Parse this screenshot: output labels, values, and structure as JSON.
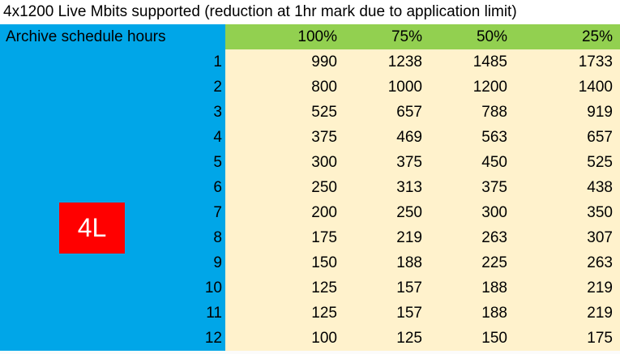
{
  "title": "4x1200 Live Mbits supported (reduction at 1hr mark due to application limit)",
  "header": {
    "row_label": "Archive schedule hours",
    "columns": [
      "100%",
      "75%",
      "50%",
      "25%"
    ]
  },
  "badge": "4L",
  "colors": {
    "sidebar": "#00a6e8",
    "header_band": "#92d050",
    "data_band": "#fff2cc",
    "badge": "#ff0000"
  },
  "rows": [
    {
      "hours": "1",
      "values": [
        "990",
        "1238",
        "1485",
        "1733"
      ]
    },
    {
      "hours": "2",
      "values": [
        "800",
        "1000",
        "1200",
        "1400"
      ]
    },
    {
      "hours": "3",
      "values": [
        "525",
        "657",
        "788",
        "919"
      ]
    },
    {
      "hours": "4",
      "values": [
        "375",
        "469",
        "563",
        "657"
      ]
    },
    {
      "hours": "5",
      "values": [
        "300",
        "375",
        "450",
        "525"
      ]
    },
    {
      "hours": "6",
      "values": [
        "250",
        "313",
        "375",
        "438"
      ]
    },
    {
      "hours": "7",
      "values": [
        "200",
        "250",
        "300",
        "350"
      ]
    },
    {
      "hours": "8",
      "values": [
        "175",
        "219",
        "263",
        "307"
      ]
    },
    {
      "hours": "9",
      "values": [
        "150",
        "188",
        "225",
        "263"
      ]
    },
    {
      "hours": "10",
      "values": [
        "125",
        "157",
        "188",
        "219"
      ]
    },
    {
      "hours": "11",
      "values": [
        "125",
        "157",
        "188",
        "219"
      ]
    },
    {
      "hours": "12",
      "values": [
        "100",
        "125",
        "150",
        "175"
      ]
    }
  ]
}
